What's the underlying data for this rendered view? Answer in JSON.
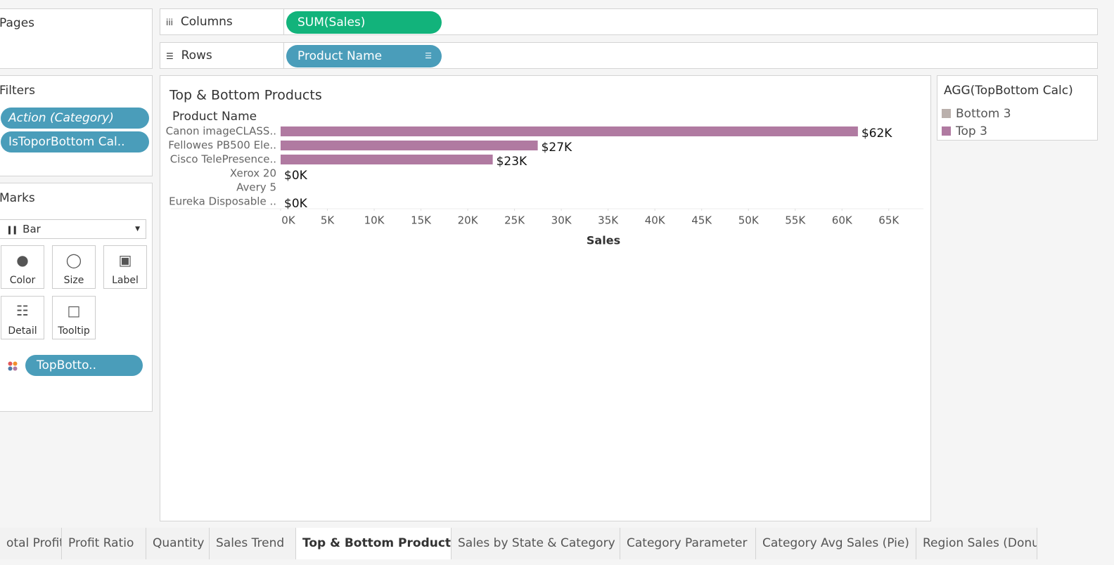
{
  "ui": {
    "pages": "Pages",
    "columns_label": "Columns",
    "columns_pill": "SUM(Sales)",
    "rows_label": "Rows",
    "rows_pill": "Product Name",
    "filters": "Filters",
    "filter_pills": [
      "Action (Category)",
      "IsToporBottom Cal.."
    ],
    "marks": "Marks",
    "mark_type": "Bar",
    "mark_buttons": [
      "Color",
      "Size",
      "Label",
      "Detail",
      "Tooltip"
    ],
    "mark_pill": "TopBotto..",
    "tabs": [
      "otal Profit",
      "Profit Ratio",
      "Quantity",
      "Sales Trend",
      "Top & Bottom Products",
      "Sales by State & Category",
      "Category Parameter",
      "Category Avg Sales (Pie)",
      "Region Sales (Donu"
    ]
  },
  "chart_data": {
    "type": "bar",
    "orientation": "horizontal",
    "title": "Top & Bottom Products",
    "category_header": "Product Name",
    "categories": [
      "Canon imageCLASS..",
      "Fellowes PB500 Ele..",
      "Cisco TelePresence..",
      "Xerox 20",
      "Avery 5",
      "Eureka Disposable .."
    ],
    "values": [
      61700,
      27480,
      22670,
      0,
      0,
      0
    ],
    "value_labels": [
      "$62K",
      "$27K",
      "$23K",
      "$0K",
      null,
      "$0K"
    ],
    "color": "#b07aa1",
    "x_label": "Sales",
    "xlim": [
      0,
      68700
    ],
    "xticks": [
      {
        "value": 0,
        "label": "0K"
      },
      {
        "value": 5000,
        "label": "5K"
      },
      {
        "value": 10000,
        "label": "10K"
      },
      {
        "value": 15000,
        "label": "15K"
      },
      {
        "value": 20000,
        "label": "20K"
      },
      {
        "value": 25000,
        "label": "25K"
      },
      {
        "value": 30000,
        "label": "30K"
      },
      {
        "value": 35000,
        "label": "35K"
      },
      {
        "value": 40000,
        "label": "40K"
      },
      {
        "value": 45000,
        "label": "45K"
      },
      {
        "value": 50000,
        "label": "50K"
      },
      {
        "value": 55000,
        "label": "55K"
      },
      {
        "value": 60000,
        "label": "60K"
      },
      {
        "value": 65000,
        "label": "65K"
      }
    ],
    "legend": {
      "title": "AGG(TopBottom Calc)",
      "items": [
        {
          "name": "Bottom 3",
          "color": "#bab0ac"
        },
        {
          "name": "Top 3",
          "color": "#b07aa1"
        }
      ]
    }
  }
}
